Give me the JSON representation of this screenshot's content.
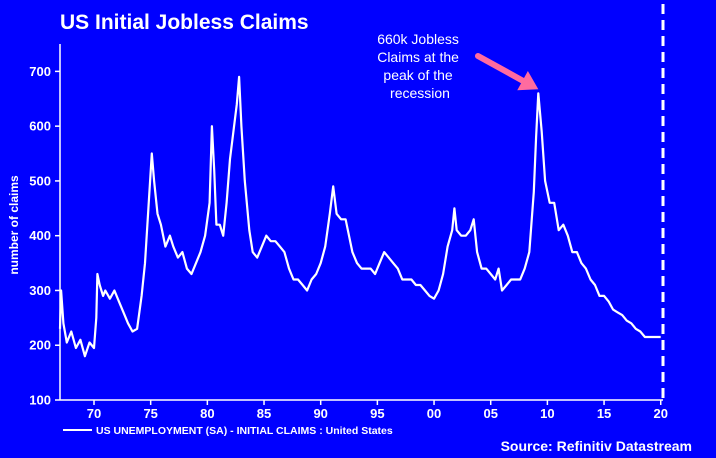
{
  "chart_data": {
    "type": "line",
    "title": "US Initial Jobless Claims",
    "ylabel": "number of claims",
    "xlabel": "",
    "ylim": [
      100,
      750
    ],
    "xlim": [
      1967.0,
      2020.2
    ],
    "yticks": [
      100,
      200,
      300,
      400,
      500,
      600,
      700
    ],
    "xticks": [
      {
        "label": "70",
        "year": 1970
      },
      {
        "label": "75",
        "year": 1975
      },
      {
        "label": "80",
        "year": 1980
      },
      {
        "label": "85",
        "year": 1985
      },
      {
        "label": "90",
        "year": 1990
      },
      {
        "label": "95",
        "year": 1995
      },
      {
        "label": "00",
        "year": 2000
      },
      {
        "label": "05",
        "year": 2005
      },
      {
        "label": "10",
        "year": 2010
      },
      {
        "label": "15",
        "year": 2015
      },
      {
        "label": "20",
        "year": 2020
      }
    ],
    "series": [
      {
        "name": "US UNEMPLOYMENT (SA) - INITIAL CLAIMS : United States",
        "color": "#ffffff",
        "points": [
          [
            1967.0,
            230
          ],
          [
            1967.1,
            300
          ],
          [
            1967.3,
            240
          ],
          [
            1967.6,
            205
          ],
          [
            1968.0,
            225
          ],
          [
            1968.4,
            195
          ],
          [
            1968.8,
            210
          ],
          [
            1969.2,
            180
          ],
          [
            1969.6,
            205
          ],
          [
            1970.0,
            195
          ],
          [
            1970.2,
            250
          ],
          [
            1970.3,
            330
          ],
          [
            1970.5,
            310
          ],
          [
            1970.8,
            290
          ],
          [
            1971.0,
            300
          ],
          [
            1971.4,
            285
          ],
          [
            1971.8,
            300
          ],
          [
            1972.2,
            280
          ],
          [
            1972.6,
            260
          ],
          [
            1973.0,
            240
          ],
          [
            1973.4,
            225
          ],
          [
            1973.8,
            230
          ],
          [
            1974.2,
            290
          ],
          [
            1974.5,
            350
          ],
          [
            1974.8,
            450
          ],
          [
            1975.1,
            550
          ],
          [
            1975.3,
            500
          ],
          [
            1975.6,
            440
          ],
          [
            1975.9,
            420
          ],
          [
            1976.3,
            380
          ],
          [
            1976.7,
            400
          ],
          [
            1977.0,
            380
          ],
          [
            1977.4,
            360
          ],
          [
            1977.8,
            370
          ],
          [
            1978.2,
            340
          ],
          [
            1978.6,
            330
          ],
          [
            1979.0,
            350
          ],
          [
            1979.4,
            370
          ],
          [
            1979.8,
            400
          ],
          [
            1980.2,
            460
          ],
          [
            1980.4,
            600
          ],
          [
            1980.6,
            520
          ],
          [
            1980.8,
            420
          ],
          [
            1981.1,
            420
          ],
          [
            1981.4,
            400
          ],
          [
            1981.7,
            460
          ],
          [
            1982.0,
            540
          ],
          [
            1982.3,
            590
          ],
          [
            1982.6,
            640
          ],
          [
            1982.8,
            690
          ],
          [
            1983.0,
            600
          ],
          [
            1983.3,
            500
          ],
          [
            1983.7,
            410
          ],
          [
            1984.0,
            370
          ],
          [
            1984.4,
            360
          ],
          [
            1984.8,
            380
          ],
          [
            1985.2,
            400
          ],
          [
            1985.6,
            390
          ],
          [
            1986.0,
            390
          ],
          [
            1986.4,
            380
          ],
          [
            1986.8,
            370
          ],
          [
            1987.2,
            340
          ],
          [
            1987.6,
            320
          ],
          [
            1988.0,
            320
          ],
          [
            1988.4,
            310
          ],
          [
            1988.8,
            300
          ],
          [
            1989.2,
            320
          ],
          [
            1989.6,
            330
          ],
          [
            1990.0,
            350
          ],
          [
            1990.4,
            380
          ],
          [
            1990.8,
            440
          ],
          [
            1991.1,
            490
          ],
          [
            1991.4,
            440
          ],
          [
            1991.8,
            430
          ],
          [
            1992.2,
            430
          ],
          [
            1992.5,
            400
          ],
          [
            1992.8,
            370
          ],
          [
            1993.2,
            350
          ],
          [
            1993.6,
            340
          ],
          [
            1994.0,
            340
          ],
          [
            1994.4,
            340
          ],
          [
            1994.8,
            330
          ],
          [
            1995.2,
            350
          ],
          [
            1995.6,
            370
          ],
          [
            1996.0,
            360
          ],
          [
            1996.4,
            350
          ],
          [
            1996.8,
            340
          ],
          [
            1997.2,
            320
          ],
          [
            1997.6,
            320
          ],
          [
            1998.0,
            320
          ],
          [
            1998.4,
            310
          ],
          [
            1998.8,
            310
          ],
          [
            1999.2,
            300
          ],
          [
            1999.6,
            290
          ],
          [
            2000.0,
            285
          ],
          [
            2000.4,
            300
          ],
          [
            2000.8,
            330
          ],
          [
            2001.2,
            380
          ],
          [
            2001.6,
            410
          ],
          [
            2001.8,
            450
          ],
          [
            2002.0,
            410
          ],
          [
            2002.4,
            400
          ],
          [
            2002.8,
            400
          ],
          [
            2003.2,
            410
          ],
          [
            2003.5,
            430
          ],
          [
            2003.8,
            370
          ],
          [
            2004.2,
            340
          ],
          [
            2004.6,
            340
          ],
          [
            2005.0,
            330
          ],
          [
            2005.4,
            320
          ],
          [
            2005.7,
            340
          ],
          [
            2006.0,
            300
          ],
          [
            2006.4,
            310
          ],
          [
            2006.8,
            320
          ],
          [
            2007.2,
            320
          ],
          [
            2007.6,
            320
          ],
          [
            2008.0,
            340
          ],
          [
            2008.4,
            370
          ],
          [
            2008.8,
            480
          ],
          [
            2009.0,
            580
          ],
          [
            2009.2,
            660
          ],
          [
            2009.5,
            590
          ],
          [
            2009.8,
            500
          ],
          [
            2010.2,
            460
          ],
          [
            2010.6,
            460
          ],
          [
            2011.0,
            410
          ],
          [
            2011.4,
            420
          ],
          [
            2011.8,
            400
          ],
          [
            2012.2,
            370
          ],
          [
            2012.6,
            370
          ],
          [
            2013.0,
            350
          ],
          [
            2013.4,
            340
          ],
          [
            2013.8,
            320
          ],
          [
            2014.2,
            310
          ],
          [
            2014.6,
            290
          ],
          [
            2015.0,
            290
          ],
          [
            2015.4,
            280
          ],
          [
            2015.8,
            265
          ],
          [
            2016.2,
            260
          ],
          [
            2016.6,
            255
          ],
          [
            2017.0,
            245
          ],
          [
            2017.4,
            240
          ],
          [
            2017.8,
            230
          ],
          [
            2018.2,
            225
          ],
          [
            2018.6,
            215
          ],
          [
            2019.0,
            215
          ],
          [
            2019.4,
            215
          ],
          [
            2019.8,
            215
          ],
          [
            2020.0,
            215
          ]
        ]
      }
    ],
    "annotation": {
      "lines": [
        "660k Jobless",
        "Claims at the",
        "peak of the",
        "recession"
      ],
      "target": [
        2009.2,
        660
      ],
      "arrow_color": "#ff6b9f"
    },
    "marker_year": 2020.2,
    "legend_position": "bottom-left",
    "grid": false
  },
  "source": "Source: Refinitiv Datastream",
  "colors": {
    "background": "#0000ff",
    "line": "#ffffff",
    "arrow": "#ff6b9f"
  }
}
